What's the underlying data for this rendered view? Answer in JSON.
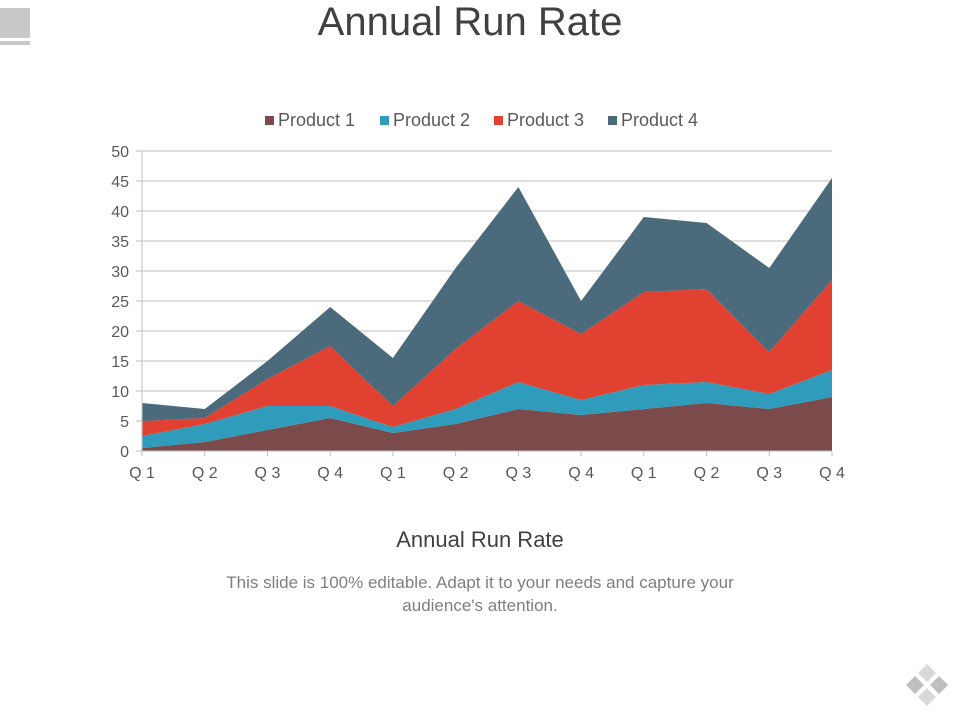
{
  "slide": {
    "title": "Annual Run Rate",
    "caption": "Annual Run Rate",
    "description": "This slide is 100% editable. Adapt it to your needs and capture your audience's attention."
  },
  "colors": {
    "product1": "#7b4a4a",
    "product2": "#2e9cba",
    "product3": "#e04131",
    "product4": "#4b6a7b",
    "grid": "#bfbfbf",
    "axis_text": "#595959"
  },
  "chart_data": {
    "type": "area",
    "stacked": true,
    "categories": [
      "Q 1",
      "Q 2",
      "Q 3",
      "Q 4",
      "Q 1",
      "Q 2",
      "Q 3",
      "Q 4",
      "Q 1",
      "Q 2",
      "Q 3",
      "Q 4"
    ],
    "series": [
      {
        "name": "Product 1",
        "values": [
          0.5,
          1.5,
          3.5,
          5.5,
          3,
          4.5,
          7,
          6,
          7,
          8,
          7,
          9
        ]
      },
      {
        "name": "Product 2",
        "values": [
          2,
          3,
          4,
          2,
          1,
          2.5,
          4.5,
          2.5,
          4,
          3.5,
          2.5,
          4.5
        ]
      },
      {
        "name": "Product 3",
        "values": [
          2.5,
          1,
          4.5,
          10,
          3.5,
          10,
          13.5,
          11,
          15.5,
          15.5,
          7,
          15
        ]
      },
      {
        "name": "Product 4",
        "values": [
          3,
          1.5,
          3,
          6.5,
          8,
          13.5,
          19,
          5.5,
          12.5,
          11,
          14,
          17
        ]
      }
    ],
    "ylim": [
      0,
      50
    ],
    "yticks": [
      "0",
      "5",
      "10",
      "15",
      "20",
      "25",
      "30",
      "35",
      "40",
      "45",
      "50"
    ],
    "grid": true,
    "legend_position": "top"
  }
}
